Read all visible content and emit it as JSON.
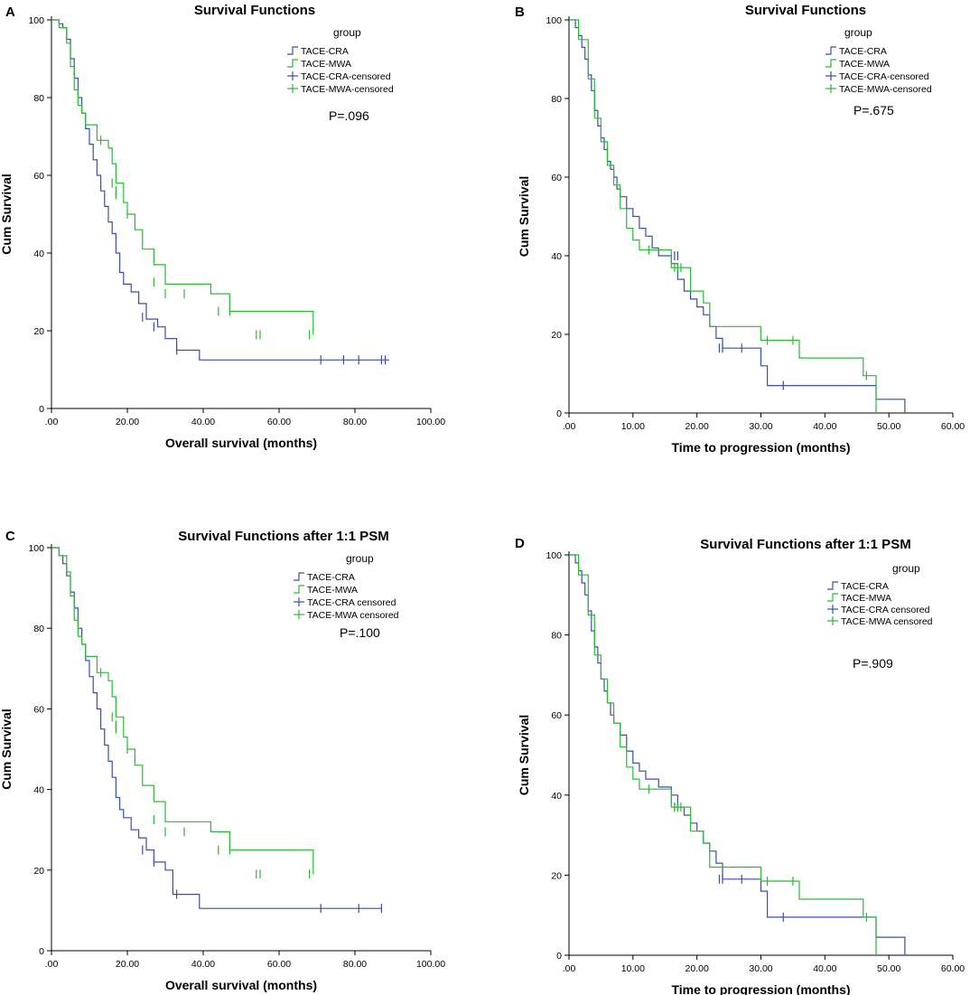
{
  "figure": {
    "colors": {
      "TACE-CRA": "#3a4fa8",
      "TACE-MWA": "#2eb838",
      "axis": "#000000"
    }
  },
  "chart_data": [
    {
      "panel": "A",
      "type": "line",
      "subtype": "kaplan-meier-step",
      "title": "Survival Functions",
      "xlabel": "Overall survival (months)",
      "ylabel": "Cum Survival",
      "xlim": [
        0,
        100
      ],
      "ylim": [
        0,
        100
      ],
      "xticks": [
        0,
        20,
        40,
        60,
        80,
        100
      ],
      "xtick_labels": [
        ".00",
        "20.00",
        "40.00",
        "60.00",
        "80.00",
        "100.00"
      ],
      "yticks": [
        0,
        20,
        40,
        60,
        80,
        100
      ],
      "ytick_labels": [
        "0",
        "20",
        "40",
        "60",
        "80",
        "100"
      ],
      "legend_title": "group",
      "legend": [
        "TACE-CRA",
        "TACE-MWA",
        "TACE-CRA-censored",
        "TACE-MWA-censored"
      ],
      "p_value": "P=.096",
      "series": [
        {
          "name": "TACE-CRA",
          "x": [
            0,
            2,
            3,
            4,
            5,
            6,
            7,
            8,
            9,
            10,
            11,
            12,
            13,
            14,
            15,
            16,
            17,
            18,
            19,
            20,
            21,
            23,
            25,
            28,
            30,
            33,
            39,
            89
          ],
          "y": [
            100,
            99,
            98,
            95,
            90,
            85,
            80,
            76,
            72,
            68,
            64,
            60,
            56,
            52,
            48,
            45,
            40,
            35,
            32,
            32,
            30,
            27,
            23,
            21,
            18,
            15,
            12.5,
            12.5
          ],
          "censored": [
            [
              24,
              23.5
            ],
            [
              27,
              21
            ],
            [
              33,
              15
            ],
            [
              71,
              12.5
            ],
            [
              77,
              12.5
            ],
            [
              81,
              12.5
            ],
            [
              87,
              12.5
            ],
            [
              88,
              12.5
            ]
          ]
        },
        {
          "name": "TACE-MWA",
          "x": [
            0,
            2,
            4,
            5,
            6,
            7,
            8,
            9,
            10,
            12,
            15,
            16,
            17,
            19,
            20,
            22,
            24,
            27,
            30,
            42,
            47,
            69
          ],
          "y": [
            100,
            98,
            94,
            88,
            82,
            78,
            76,
            73,
            73,
            69,
            67,
            63,
            58,
            53,
            50,
            46,
            41,
            37,
            32,
            29.5,
            25,
            19
          ],
          "censored": [
            [
              13,
              69
            ],
            [
              16,
              58
            ],
            [
              17,
              56
            ],
            [
              17,
              55
            ],
            [
              20,
              50
            ],
            [
              27,
              32.5
            ],
            [
              30,
              29.5
            ],
            [
              35,
              29.5
            ],
            [
              44,
              25
            ],
            [
              47,
              25
            ],
            [
              54,
              19
            ],
            [
              55,
              19
            ],
            [
              68,
              19
            ]
          ]
        }
      ]
    },
    {
      "panel": "B",
      "type": "line",
      "subtype": "kaplan-meier-step",
      "title": "Survival Functions",
      "xlabel": "Time to progression (months)",
      "ylabel": "Cum Survival",
      "xlim": [
        0,
        60
      ],
      "ylim": [
        0,
        100
      ],
      "xticks": [
        0,
        10,
        20,
        30,
        40,
        50,
        60
      ],
      "xtick_labels": [
        ".00",
        "10.00",
        "20.00",
        "30.00",
        "40.00",
        "50.00",
        "60.00"
      ],
      "yticks": [
        0,
        20,
        40,
        60,
        80,
        100
      ],
      "ytick_labels": [
        "0",
        "20",
        "40",
        "60",
        "80",
        "100"
      ],
      "legend_title": "group",
      "legend": [
        "TACE-CRA",
        "TACE-MWA",
        "TACE-CRA-censored",
        "TACE-MWA-censored"
      ],
      "p_value": "P=.675",
      "series": [
        {
          "name": "TACE-CRA",
          "x": [
            0,
            1,
            1.5,
            2,
            2.5,
            3,
            3.5,
            4,
            4.5,
            5,
            5.5,
            6,
            6.5,
            7,
            7.5,
            8,
            9,
            10,
            11,
            12,
            13,
            14,
            15,
            16,
            17,
            18,
            19,
            20,
            21,
            22,
            23,
            24,
            30,
            31,
            48,
            52.5
          ],
          "y": [
            100,
            98,
            96,
            93,
            90,
            86,
            82,
            77,
            73,
            70,
            67,
            64,
            62,
            60,
            57,
            55,
            52,
            50,
            47,
            45,
            42,
            40,
            40,
            38,
            34,
            31,
            29,
            27,
            25,
            22,
            19,
            16.5,
            12,
            7,
            3.5,
            0
          ],
          "censored": [
            [
              16.5,
              40
            ],
            [
              17,
              40
            ],
            [
              23.5,
              16.5
            ],
            [
              24,
              16.5
            ],
            [
              27,
              16.5
            ],
            [
              33.5,
              7
            ]
          ]
        },
        {
          "name": "TACE-MWA",
          "x": [
            0,
            1.5,
            3,
            4,
            5,
            6,
            7,
            8,
            9,
            10,
            11,
            14,
            16,
            17,
            19,
            21,
            22,
            30,
            36,
            46,
            48
          ],
          "y": [
            100,
            95,
            85,
            75,
            69,
            63,
            58,
            52,
            47,
            44,
            41.5,
            41.5,
            37,
            37,
            31,
            28,
            22,
            18.5,
            14,
            9.5,
            0
          ],
          "censored": [
            [
              12.5,
              41.5
            ],
            [
              16,
              39
            ],
            [
              16.5,
              37
            ],
            [
              17,
              37
            ],
            [
              17.5,
              37
            ],
            [
              31,
              18.5
            ],
            [
              35,
              18.5
            ],
            [
              46.5,
              9.5
            ]
          ]
        }
      ]
    },
    {
      "panel": "C",
      "type": "line",
      "subtype": "kaplan-meier-step",
      "title": "Survival Functions after 1:1 PSM",
      "xlabel": "Overall survival (months)",
      "ylabel": "Cum Survival",
      "xlim": [
        0,
        100
      ],
      "ylim": [
        0,
        100
      ],
      "xticks": [
        0,
        20,
        40,
        60,
        80,
        100
      ],
      "xtick_labels": [
        ".00",
        "20.00",
        "40.00",
        "60.00",
        "80.00",
        "100.00"
      ],
      "yticks": [
        0,
        20,
        40,
        60,
        80,
        100
      ],
      "ytick_labels": [
        "0",
        "20",
        "40",
        "60",
        "80",
        "100"
      ],
      "legend_title": "group",
      "legend": [
        "TACE-CRA",
        "TACE-MWA",
        "TACE-CRA censored",
        "TACE-MWA censored"
      ],
      "p_value": "P=.100",
      "series": [
        {
          "name": "TACE-CRA",
          "x": [
            0,
            2,
            3,
            4,
            5,
            6,
            7,
            8,
            9,
            10,
            11,
            12,
            13,
            14,
            15,
            16,
            17,
            18,
            19,
            20,
            21,
            23,
            25,
            27,
            30,
            32,
            39,
            87
          ],
          "y": [
            100,
            98,
            96,
            93,
            89,
            85,
            80,
            76,
            72,
            68,
            64,
            60,
            55,
            51,
            47,
            43,
            38,
            35,
            33,
            33,
            30,
            28,
            25,
            22,
            20,
            14,
            10.5,
            10.5
          ],
          "censored": [
            [
              24,
              25
            ],
            [
              27,
              22
            ],
            [
              33,
              14
            ],
            [
              71,
              10.5
            ],
            [
              81,
              10.5
            ],
            [
              87,
              10.5
            ]
          ]
        },
        {
          "name": "TACE-MWA",
          "x": [
            0,
            2,
            4,
            5,
            6,
            7,
            8,
            9,
            10,
            12,
            15,
            16,
            17,
            19,
            20,
            22,
            24,
            27,
            30,
            42,
            47,
            69
          ],
          "y": [
            100,
            98,
            94,
            88,
            82,
            78,
            76,
            73,
            73,
            69,
            67,
            63,
            58,
            53,
            50,
            46,
            41,
            37,
            32,
            29.5,
            25,
            19
          ],
          "censored": [
            [
              13,
              69
            ],
            [
              16,
              58
            ],
            [
              17,
              56
            ],
            [
              17,
              55
            ],
            [
              20,
              50
            ],
            [
              27,
              32.5
            ],
            [
              30,
              29.5
            ],
            [
              35,
              29.5
            ],
            [
              44,
              25
            ],
            [
              47,
              25
            ],
            [
              54,
              19
            ],
            [
              55,
              19
            ],
            [
              68,
              19
            ]
          ]
        }
      ]
    },
    {
      "panel": "D",
      "type": "line",
      "subtype": "kaplan-meier-step",
      "title": "Survival Functions after 1:1 PSM",
      "xlabel": "Time to progression (months)",
      "ylabel": "Cum Survival",
      "xlim": [
        0,
        60
      ],
      "ylim": [
        0,
        100
      ],
      "xticks": [
        0,
        10,
        20,
        30,
        40,
        50,
        60
      ],
      "xtick_labels": [
        ".00",
        "10.00",
        "20.00",
        "30.00",
        "40.00",
        "50.00",
        "60.00"
      ],
      "yticks": [
        0,
        20,
        40,
        60,
        80,
        100
      ],
      "ytick_labels": [
        "0",
        "20",
        "40",
        "60",
        "80",
        "100"
      ],
      "legend_title": "group",
      "legend": [
        "TACE-CRA",
        "TACE-MWA",
        "TACE-CRA censored",
        "TACE-MWA censored"
      ],
      "p_value": "P=.909",
      "series": [
        {
          "name": "TACE-CRA",
          "x": [
            0,
            1,
            1.5,
            2,
            2.5,
            3,
            3.5,
            4,
            4.5,
            5,
            5.5,
            6,
            6.5,
            7,
            8,
            9,
            10,
            11,
            12,
            14,
            15,
            16,
            17,
            18,
            19,
            20,
            21,
            22,
            23,
            24,
            30,
            31,
            48,
            52.5
          ],
          "y": [
            100,
            98,
            96,
            93,
            90,
            86,
            81,
            77,
            73,
            69,
            66,
            63,
            60,
            58,
            55,
            51,
            48,
            46,
            44,
            42,
            42,
            40,
            37,
            35,
            33,
            31,
            28,
            26,
            23,
            19,
            16,
            9.5,
            4.5,
            0
          ],
          "censored": [
            [
              16.5,
              37
            ],
            [
              17,
              37
            ],
            [
              23.5,
              19
            ],
            [
              24,
              19
            ],
            [
              27,
              19
            ],
            [
              33.5,
              9.5
            ]
          ]
        },
        {
          "name": "TACE-MWA",
          "x": [
            0,
            1.5,
            3,
            4,
            5,
            6,
            7,
            8,
            9,
            10,
            11,
            14,
            16,
            17,
            19,
            21,
            22,
            30,
            36,
            46,
            48
          ],
          "y": [
            100,
            95,
            85,
            75,
            69,
            63,
            58,
            52,
            47,
            44,
            41.5,
            41.5,
            37,
            37,
            31,
            28,
            22,
            18.5,
            14,
            9.5,
            0
          ],
          "censored": [
            [
              12.5,
              41.5
            ],
            [
              16,
              39
            ],
            [
              16.5,
              37
            ],
            [
              17,
              37
            ],
            [
              17.5,
              37
            ],
            [
              31,
              18.5
            ],
            [
              35,
              18.5
            ],
            [
              46.5,
              9.5
            ]
          ]
        }
      ]
    }
  ]
}
